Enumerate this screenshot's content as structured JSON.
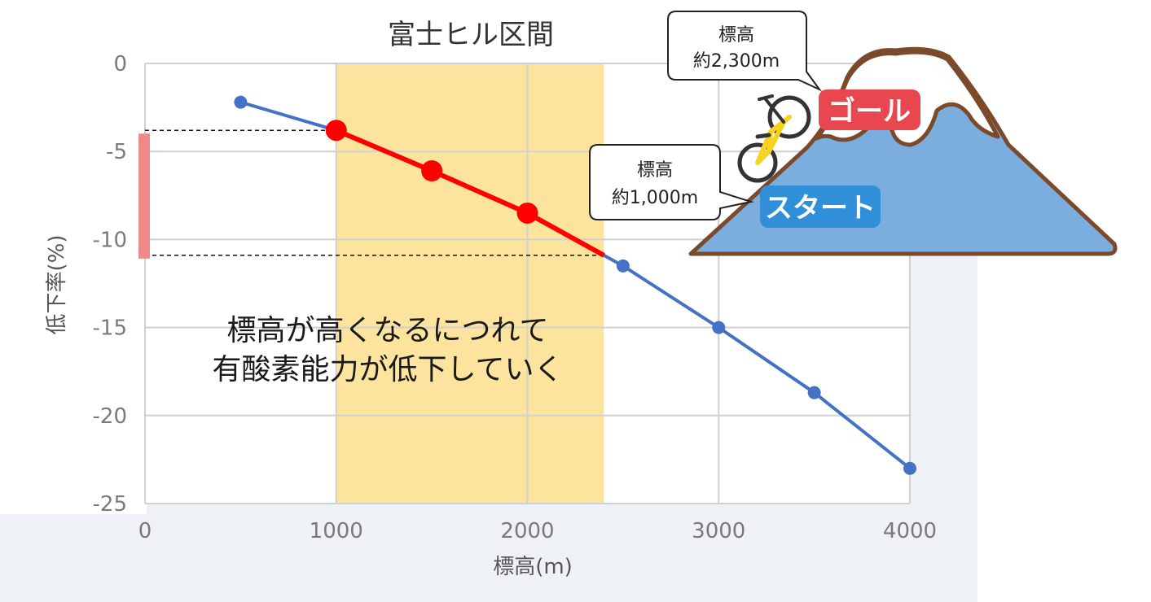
{
  "chart_data": {
    "type": "line",
    "title": "富士ヒル区間",
    "xlabel": "標高(m)",
    "ylabel": "低下率(%)",
    "xlim": [
      0,
      4000
    ],
    "ylim": [
      -25,
      0
    ],
    "x_ticks": [
      "0",
      "1000",
      "2000",
      "3000",
      "4000"
    ],
    "y_ticks": [
      "0",
      "-5",
      "-10",
      "-15",
      "-20",
      "-25"
    ],
    "grid": true,
    "series": [
      {
        "x": [
          500,
          1000,
          1500,
          2000,
          2500,
          3000,
          3500,
          4000
        ],
        "y": [
          -2.2,
          -3.8,
          -6.1,
          -8.5,
          -11.5,
          -15,
          -18.7,
          -23
        ],
        "color": "#4472c4"
      }
    ],
    "highlight": {
      "x_range": [
        1000,
        2400
      ],
      "band_color": "#fde49e",
      "line_color": "#ff0000",
      "points_x": [
        1000,
        1500,
        2000
      ],
      "points_y": [
        -3.8,
        -6.1,
        -8.5
      ],
      "line_end": [
        2400,
        -10.9
      ],
      "y_span": [
        -3.8,
        -10.9
      ],
      "y_span_color": "#f08a8a"
    },
    "annotation": {
      "line1": "標高が高くなるにつれて",
      "line2": "有酸素能力が低下していく"
    }
  },
  "illustration": {
    "goal_bubble": {
      "line1": "標高",
      "line2": "約2,300m"
    },
    "start_bubble": {
      "line1": "標高",
      "line2": "約1,000m"
    },
    "goal_label": "ゴール",
    "start_label": "スタート",
    "mountain_color": "#7badde",
    "snow_color": "#ffffff",
    "outline_color": "#7a4a2a",
    "goal_color": "#e8474f",
    "start_color": "#2f8fd8",
    "bike_color": "#f5d31f"
  }
}
